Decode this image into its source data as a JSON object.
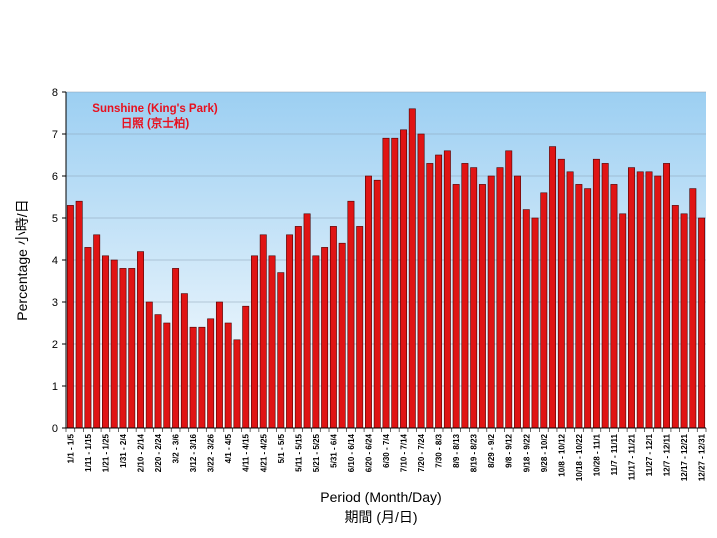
{
  "chart_data": {
    "type": "bar",
    "title": "",
    "annotation": [
      "Sunshine (King's Park)",
      "日照 (京士柏)"
    ],
    "ylabel": "Percentage 小時/日",
    "xlabel": [
      "Period (Month/Day)",
      "期間 (月/日)"
    ],
    "ylim": [
      0,
      8
    ],
    "yticks": [
      "0",
      "1",
      "2",
      "3",
      "4",
      "5",
      "6",
      "7",
      "8"
    ],
    "grid": true,
    "legend": "none",
    "colors": {
      "bar": "#e01414",
      "bar_edge": "#4a0000",
      "plot_bg_top": "#9ccff2",
      "plot_bg_bottom": "#ffffff",
      "gridline": "#8aa0b4",
      "annotation": "#e8101e"
    },
    "tick_labels": [
      "1/1 - 1/5",
      "1/11 - 1/15",
      "1/21 - 1/25",
      "1/31 - 2/4",
      "2/10 - 2/14",
      "2/20 - 2/24",
      "3/2 - 3/6",
      "3/12 - 3/16",
      "3/22 - 3/26",
      "4/1 - 4/5",
      "4/11 - 4/15",
      "4/21 - 4/25",
      "5/1 - 5/5",
      "5/11 - 5/15",
      "5/21 - 5/25",
      "5/31 - 6/4",
      "6/10 - 6/14",
      "6/20 - 6/24",
      "6/30 - 7/4",
      "7/10 - 7/14",
      "7/20 - 7/24",
      "7/30 - 8/3",
      "8/9 - 8/13",
      "8/19 - 8/23",
      "8/29 - 9/2",
      "9/8 - 9/12",
      "9/18 - 9/22",
      "9/28 - 10/2",
      "10/8 - 10/12",
      "10/18 - 10/22",
      "10/28 - 11/1",
      "11/7 - 11/11",
      "11/17 - 11/21",
      "11/27 - 12/1",
      "12/7 - 12/11",
      "12/17 - 12/21",
      "12/27 - 12/31"
    ],
    "values": [
      5.3,
      5.4,
      4.3,
      4.6,
      4.1,
      4.0,
      3.8,
      3.8,
      4.2,
      3.0,
      2.7,
      2.5,
      3.8,
      3.2,
      2.4,
      2.4,
      2.6,
      3.0,
      2.5,
      2.1,
      2.9,
      4.1,
      4.6,
      4.1,
      3.7,
      4.6,
      4.8,
      5.1,
      4.1,
      4.3,
      4.8,
      4.4,
      5.4,
      4.8,
      6.0,
      5.9,
      6.9,
      6.9,
      7.1,
      7.6,
      7.0,
      6.3,
      6.5,
      6.6,
      5.8,
      6.3,
      6.2,
      5.8,
      6.0,
      6.2,
      6.6,
      6.0,
      5.2,
      5.0,
      5.6,
      6.7,
      6.4,
      6.1,
      5.8,
      5.7,
      6.4,
      6.3,
      5.8,
      5.1,
      6.2,
      6.1,
      6.1,
      6.0,
      6.3,
      5.3,
      5.1,
      5.7,
      5.0
    ]
  }
}
